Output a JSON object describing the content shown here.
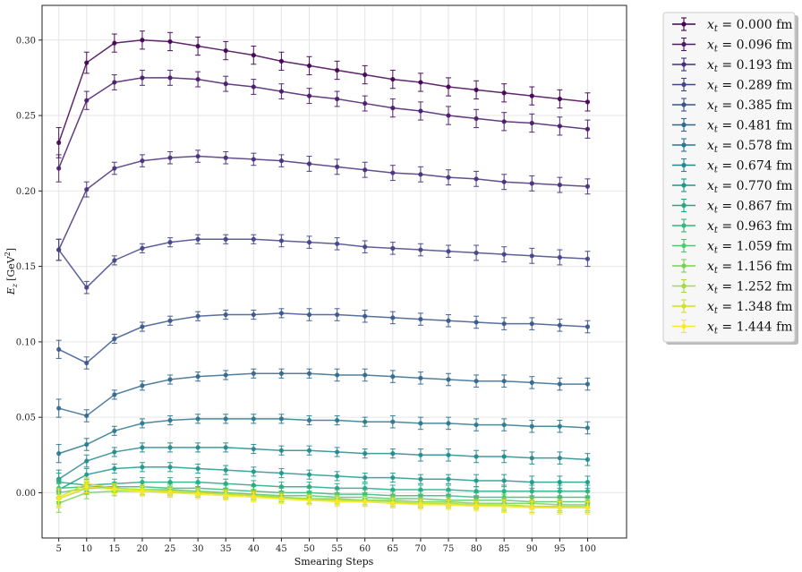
{
  "chart_data": {
    "type": "line",
    "xlabel": "Smearing Steps",
    "ylabel": "E_z [GeV²]",
    "ylabel_main": "E",
    "ylabel_sub": "z",
    "ylabel_unit": "[GeV",
    "ylabel_sup": "2",
    "ylabel_close": "]",
    "xlim": [
      2,
      107
    ],
    "ylim": [
      -0.03,
      0.323
    ],
    "x_ticks": [
      5,
      10,
      15,
      20,
      25,
      30,
      35,
      40,
      45,
      50,
      55,
      60,
      65,
      70,
      75,
      80,
      85,
      90,
      95,
      100
    ],
    "y_ticks": [
      0.0,
      0.05,
      0.1,
      0.15,
      0.2,
      0.25,
      0.3
    ],
    "y_tick_labels": [
      "0.00",
      "0.05",
      "0.10",
      "0.15",
      "0.20",
      "0.25",
      "0.30"
    ],
    "grid": true,
    "legend_position": "outside-right",
    "x": [
      5,
      10,
      15,
      20,
      25,
      30,
      35,
      40,
      45,
      50,
      55,
      60,
      65,
      70,
      75,
      80,
      85,
      90,
      95,
      100
    ],
    "series": [
      {
        "name": "x_t = 0.000 fm",
        "label_var": "x",
        "label_sub": "t",
        "label_val": " = 0.000 fm",
        "color": "#440154",
        "values": [
          0.232,
          0.285,
          0.298,
          0.3,
          0.299,
          0.296,
          0.293,
          0.29,
          0.286,
          0.283,
          0.28,
          0.277,
          0.274,
          0.272,
          0.269,
          0.267,
          0.265,
          0.263,
          0.261,
          0.259
        ],
        "errors": [
          0.01,
          0.007,
          0.006,
          0.006,
          0.006,
          0.006,
          0.006,
          0.006,
          0.006,
          0.006,
          0.006,
          0.006,
          0.006,
          0.006,
          0.006,
          0.006,
          0.006,
          0.006,
          0.006,
          0.006
        ]
      },
      {
        "name": "x_t = 0.096 fm",
        "label_var": "x",
        "label_sub": "t",
        "label_val": " = 0.096 fm",
        "color": "#481a6c",
        "values": [
          0.215,
          0.26,
          0.272,
          0.275,
          0.275,
          0.274,
          0.271,
          0.269,
          0.266,
          0.263,
          0.261,
          0.258,
          0.255,
          0.253,
          0.25,
          0.248,
          0.246,
          0.245,
          0.243,
          0.241
        ],
        "errors": [
          0.009,
          0.006,
          0.005,
          0.005,
          0.005,
          0.005,
          0.005,
          0.005,
          0.005,
          0.005,
          0.005,
          0.005,
          0.006,
          0.006,
          0.006,
          0.006,
          0.006,
          0.006,
          0.006,
          0.006
        ]
      },
      {
        "name": "x_t = 0.193 fm",
        "label_var": "x",
        "label_sub": "t",
        "label_val": " = 0.193 fm",
        "color": "#472f7d",
        "values": [
          0.161,
          0.201,
          0.215,
          0.22,
          0.222,
          0.223,
          0.222,
          0.221,
          0.22,
          0.218,
          0.216,
          0.214,
          0.212,
          0.211,
          0.209,
          0.208,
          0.206,
          0.205,
          0.204,
          0.203
        ],
        "errors": [
          0.007,
          0.005,
          0.004,
          0.004,
          0.004,
          0.004,
          0.004,
          0.004,
          0.004,
          0.005,
          0.005,
          0.005,
          0.005,
          0.005,
          0.005,
          0.005,
          0.005,
          0.005,
          0.005,
          0.005
        ]
      },
      {
        "name": "x_t = 0.289 fm",
        "label_var": "x",
        "label_sub": "t",
        "label_val": " = 0.289 fm",
        "color": "#414487",
        "values": [
          0.161,
          0.136,
          0.154,
          0.162,
          0.166,
          0.168,
          0.168,
          0.168,
          0.167,
          0.166,
          0.165,
          0.163,
          0.162,
          0.161,
          0.16,
          0.159,
          0.158,
          0.157,
          0.156,
          0.155
        ],
        "errors": [
          0.007,
          0.004,
          0.003,
          0.003,
          0.003,
          0.003,
          0.003,
          0.003,
          0.004,
          0.004,
          0.004,
          0.004,
          0.004,
          0.004,
          0.004,
          0.005,
          0.005,
          0.005,
          0.005,
          0.005
        ]
      },
      {
        "name": "x_t = 0.385 fm",
        "label_var": "x",
        "label_sub": "t",
        "label_val": " = 0.385 fm",
        "color": "#39568c",
        "values": [
          0.095,
          0.086,
          0.102,
          0.11,
          0.114,
          0.117,
          0.118,
          0.118,
          0.119,
          0.118,
          0.118,
          0.117,
          0.116,
          0.115,
          0.114,
          0.113,
          0.112,
          0.112,
          0.111,
          0.11
        ],
        "errors": [
          0.006,
          0.004,
          0.003,
          0.003,
          0.003,
          0.003,
          0.003,
          0.003,
          0.003,
          0.004,
          0.004,
          0.004,
          0.004,
          0.004,
          0.004,
          0.004,
          0.004,
          0.004,
          0.004,
          0.004
        ]
      },
      {
        "name": "x_t = 0.481 fm",
        "label_var": "x",
        "label_sub": "t",
        "label_val": " = 0.481 fm",
        "color": "#31688e",
        "values": [
          0.056,
          0.051,
          0.065,
          0.071,
          0.075,
          0.077,
          0.078,
          0.079,
          0.079,
          0.079,
          0.078,
          0.078,
          0.077,
          0.076,
          0.075,
          0.074,
          0.074,
          0.073,
          0.072,
          0.072
        ],
        "errors": [
          0.006,
          0.004,
          0.003,
          0.003,
          0.003,
          0.003,
          0.003,
          0.003,
          0.003,
          0.003,
          0.004,
          0.004,
          0.004,
          0.004,
          0.004,
          0.004,
          0.004,
          0.004,
          0.004,
          0.004
        ]
      },
      {
        "name": "x_t = 0.578 fm",
        "label_var": "x",
        "label_sub": "t",
        "label_val": " = 0.578 fm",
        "color": "#2a788e",
        "values": [
          0.026,
          0.032,
          0.041,
          0.046,
          0.048,
          0.049,
          0.049,
          0.049,
          0.049,
          0.048,
          0.048,
          0.047,
          0.047,
          0.046,
          0.046,
          0.045,
          0.045,
          0.044,
          0.044,
          0.043
        ],
        "errors": [
          0.006,
          0.004,
          0.003,
          0.003,
          0.003,
          0.003,
          0.003,
          0.003,
          0.003,
          0.003,
          0.003,
          0.003,
          0.004,
          0.004,
          0.004,
          0.004,
          0.004,
          0.004,
          0.004,
          0.004
        ]
      },
      {
        "name": "x_t = 0.674 fm",
        "label_var": "x",
        "label_sub": "t",
        "label_val": " = 0.674 fm",
        "color": "#23888e",
        "values": [
          0.009,
          0.021,
          0.027,
          0.03,
          0.03,
          0.03,
          0.03,
          0.029,
          0.028,
          0.028,
          0.027,
          0.026,
          0.026,
          0.025,
          0.025,
          0.024,
          0.024,
          0.023,
          0.023,
          0.022
        ],
        "errors": [
          0.006,
          0.004,
          0.003,
          0.003,
          0.003,
          0.003,
          0.003,
          0.003,
          0.003,
          0.003,
          0.003,
          0.003,
          0.003,
          0.004,
          0.004,
          0.004,
          0.004,
          0.004,
          0.004,
          0.004
        ]
      },
      {
        "name": "x_t = 0.770 fm",
        "label_var": "x",
        "label_sub": "t",
        "label_val": " = 0.770 fm",
        "color": "#1f988b",
        "values": [
          0.002,
          0.012,
          0.016,
          0.017,
          0.017,
          0.016,
          0.015,
          0.014,
          0.013,
          0.012,
          0.011,
          0.01,
          0.01,
          0.009,
          0.009,
          0.008,
          0.008,
          0.007,
          0.007,
          0.007
        ],
        "errors": [
          0.006,
          0.004,
          0.003,
          0.003,
          0.003,
          0.003,
          0.003,
          0.003,
          0.003,
          0.003,
          0.003,
          0.003,
          0.003,
          0.003,
          0.003,
          0.004,
          0.004,
          0.004,
          0.004,
          0.004
        ]
      },
      {
        "name": "x_t = 0.867 fm",
        "label_var": "x",
        "label_sub": "t",
        "label_val": " = 0.867 fm",
        "color": "#22a884",
        "values": [
          0.007,
          0.005,
          0.006,
          0.007,
          0.007,
          0.007,
          0.006,
          0.005,
          0.004,
          0.004,
          0.003,
          0.003,
          0.002,
          0.002,
          0.002,
          0.001,
          0.001,
          0.001,
          0.001,
          0.001
        ],
        "errors": [
          0.006,
          0.004,
          0.003,
          0.003,
          0.003,
          0.003,
          0.003,
          0.003,
          0.003,
          0.003,
          0.003,
          0.003,
          0.003,
          0.003,
          0.003,
          0.003,
          0.004,
          0.004,
          0.004,
          0.004
        ]
      },
      {
        "name": "x_t = 0.963 fm",
        "label_var": "x",
        "label_sub": "t",
        "label_val": " = 0.963 fm",
        "color": "#35b779",
        "values": [
          0.003,
          0.004,
          0.004,
          0.004,
          0.003,
          0.003,
          0.002,
          0.001,
          0.0,
          0.0,
          -0.001,
          -0.001,
          -0.002,
          -0.002,
          -0.002,
          -0.003,
          -0.003,
          -0.003,
          -0.003,
          -0.003
        ],
        "errors": [
          0.006,
          0.004,
          0.003,
          0.003,
          0.003,
          0.003,
          0.003,
          0.003,
          0.003,
          0.003,
          0.003,
          0.003,
          0.003,
          0.003,
          0.003,
          0.003,
          0.004,
          0.004,
          0.004,
          0.004
        ]
      },
      {
        "name": "x_t = 1.059 fm",
        "label_var": "x",
        "label_sub": "t",
        "label_val": " = 1.059 fm",
        "color": "#54c568",
        "values": [
          0.0,
          0.003,
          0.003,
          0.002,
          0.002,
          0.001,
          0.0,
          -0.001,
          -0.002,
          -0.002,
          -0.003,
          -0.003,
          -0.004,
          -0.004,
          -0.005,
          -0.005,
          -0.005,
          -0.006,
          -0.006,
          -0.006
        ],
        "errors": [
          0.006,
          0.004,
          0.003,
          0.003,
          0.003,
          0.003,
          0.003,
          0.003,
          0.003,
          0.003,
          0.003,
          0.003,
          0.003,
          0.003,
          0.003,
          0.003,
          0.004,
          0.004,
          0.004,
          0.004
        ]
      },
      {
        "name": "x_t = 1.156 fm",
        "label_var": "x",
        "label_sub": "t",
        "label_val": " = 1.156 fm",
        "color": "#7ad151",
        "values": [
          -0.007,
          0.0,
          0.001,
          0.001,
          0.0,
          0.0,
          -0.001,
          -0.002,
          -0.003,
          -0.004,
          -0.004,
          -0.005,
          -0.005,
          -0.006,
          -0.006,
          -0.007,
          -0.007,
          -0.007,
          -0.008,
          -0.008
        ],
        "errors": [
          0.006,
          0.004,
          0.003,
          0.003,
          0.003,
          0.003,
          0.003,
          0.003,
          0.003,
          0.003,
          0.003,
          0.003,
          0.003,
          0.003,
          0.003,
          0.003,
          0.004,
          0.004,
          0.004,
          0.004
        ]
      },
      {
        "name": "x_t = 1.252 fm",
        "label_var": "x",
        "label_sub": "t",
        "label_val": " = 1.252 fm",
        "color": "#a5db36",
        "values": [
          -0.004,
          0.003,
          0.003,
          0.002,
          0.001,
          0.0,
          -0.001,
          -0.002,
          -0.003,
          -0.004,
          -0.005,
          -0.005,
          -0.006,
          -0.007,
          -0.007,
          -0.008,
          -0.008,
          -0.009,
          -0.009,
          -0.009
        ],
        "errors": [
          0.006,
          0.004,
          0.003,
          0.003,
          0.003,
          0.003,
          0.003,
          0.003,
          0.003,
          0.003,
          0.003,
          0.003,
          0.003,
          0.003,
          0.003,
          0.003,
          0.004,
          0.004,
          0.004,
          0.004
        ]
      },
      {
        "name": "x_t = 1.348 fm",
        "label_var": "x",
        "label_sub": "t",
        "label_val": " = 1.348 fm",
        "color": "#d2e21b",
        "values": [
          -0.003,
          0.006,
          0.003,
          0.002,
          0.001,
          0.0,
          -0.001,
          -0.002,
          -0.004,
          -0.005,
          -0.005,
          -0.006,
          -0.007,
          -0.007,
          -0.008,
          -0.008,
          -0.009,
          -0.009,
          -0.01,
          -0.01
        ],
        "errors": [
          0.006,
          0.004,
          0.003,
          0.003,
          0.003,
          0.003,
          0.003,
          0.003,
          0.003,
          0.003,
          0.003,
          0.003,
          0.003,
          0.003,
          0.003,
          0.003,
          0.004,
          0.004,
          0.004,
          0.004
        ]
      },
      {
        "name": "x_t = 1.444 fm",
        "label_var": "x",
        "label_sub": "t",
        "label_val": " = 1.444 fm",
        "color": "#fde725",
        "values": [
          -0.004,
          0.004,
          0.002,
          0.001,
          0.0,
          -0.001,
          -0.002,
          -0.003,
          -0.004,
          -0.005,
          -0.006,
          -0.006,
          -0.007,
          -0.008,
          -0.008,
          -0.009,
          -0.009,
          -0.01,
          -0.01,
          -0.01
        ],
        "errors": [
          0.006,
          0.004,
          0.003,
          0.003,
          0.003,
          0.003,
          0.003,
          0.003,
          0.003,
          0.003,
          0.003,
          0.003,
          0.003,
          0.003,
          0.003,
          0.003,
          0.004,
          0.004,
          0.004,
          0.004
        ]
      }
    ]
  }
}
